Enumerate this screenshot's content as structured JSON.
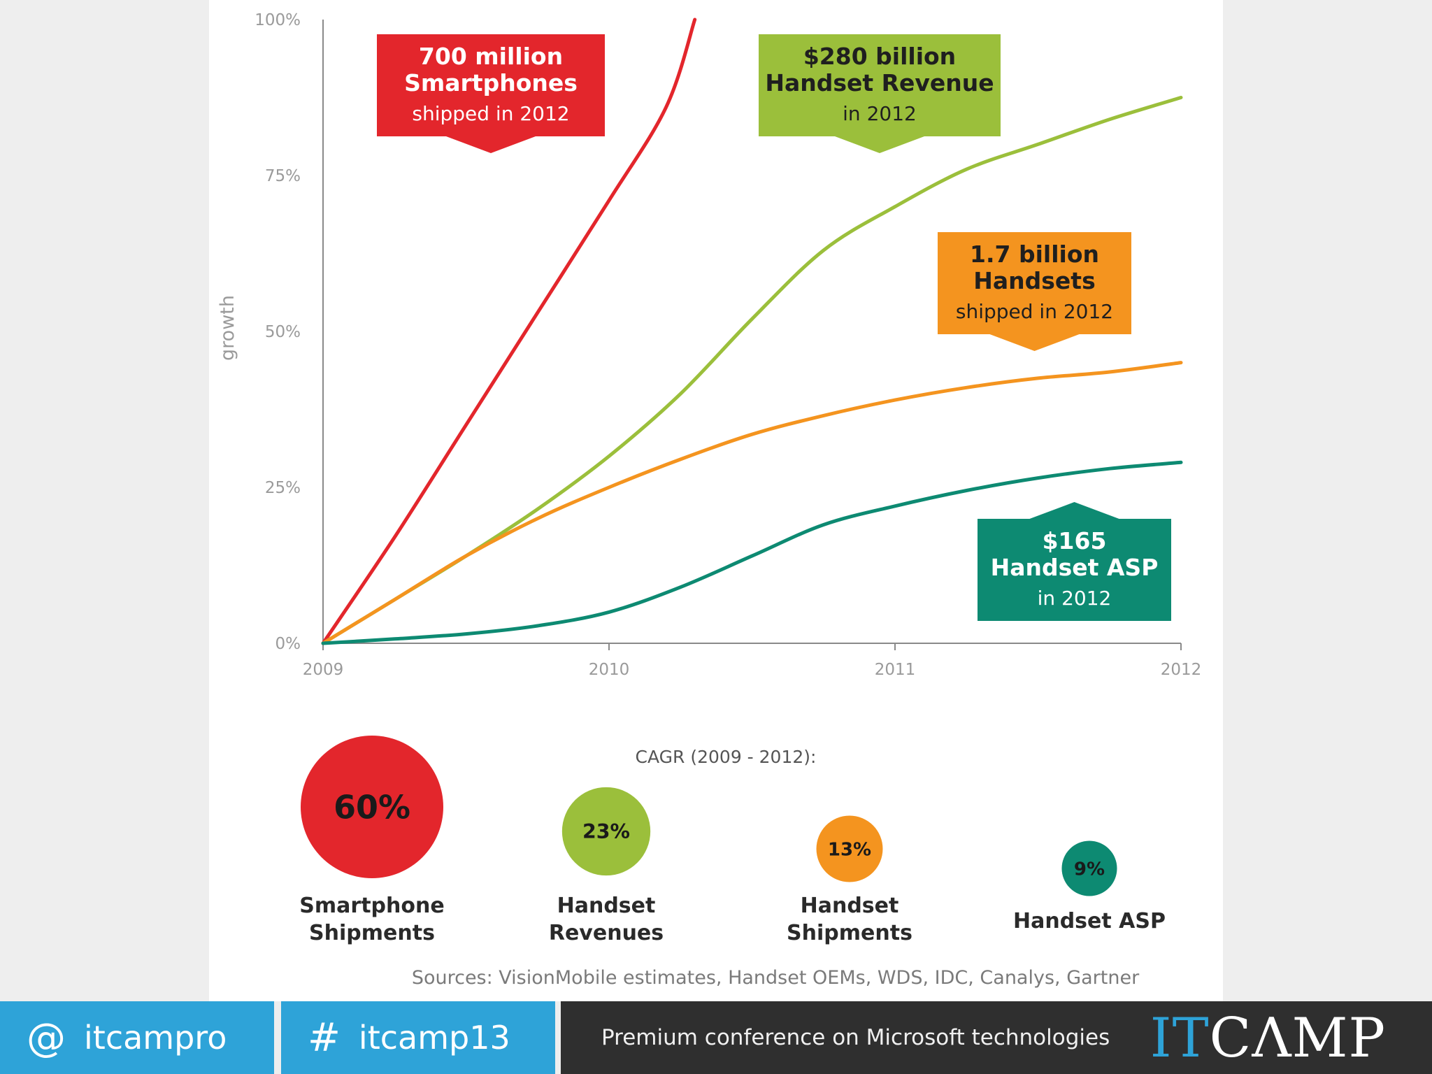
{
  "chart_data": {
    "type": "line",
    "title": "",
    "xlabel": "",
    "ylabel": "growth",
    "x": [
      2009,
      2010,
      2011,
      2012
    ],
    "x_tick_labels": [
      "2009",
      "2010",
      "2011",
      "2012"
    ],
    "ylim": [
      0,
      100
    ],
    "y_tick_labels": [
      "0%",
      "25%",
      "50%",
      "75%",
      "100%"
    ],
    "y_ticks": [
      0,
      25,
      50,
      75,
      100
    ],
    "grid": false,
    "series": [
      {
        "key": "smartphones",
        "color": "#e3262c",
        "points": [
          [
            2009,
            0
          ],
          [
            2009.25,
            17
          ],
          [
            2009.5,
            35
          ],
          [
            2009.75,
            53
          ],
          [
            2010,
            71
          ],
          [
            2010.2,
            86
          ],
          [
            2010.3,
            100
          ]
        ]
      },
      {
        "key": "revenue",
        "color": "#9bbf3b",
        "points": [
          [
            2009,
            0
          ],
          [
            2009.25,
            7
          ],
          [
            2009.5,
            14
          ],
          [
            2009.75,
            21.5
          ],
          [
            2010,
            30
          ],
          [
            2010.25,
            40
          ],
          [
            2010.5,
            52
          ],
          [
            2010.75,
            63
          ],
          [
            2011,
            70
          ],
          [
            2011.25,
            76
          ],
          [
            2011.5,
            80
          ],
          [
            2011.75,
            84
          ],
          [
            2012,
            87.5
          ]
        ]
      },
      {
        "key": "shipments",
        "color": "#f4941f",
        "points": [
          [
            2009,
            0
          ],
          [
            2009.25,
            7
          ],
          [
            2009.5,
            14
          ],
          [
            2009.75,
            20
          ],
          [
            2010,
            25
          ],
          [
            2010.25,
            29.5
          ],
          [
            2010.5,
            33.5
          ],
          [
            2010.75,
            36.5
          ],
          [
            2011,
            39
          ],
          [
            2011.25,
            41
          ],
          [
            2011.5,
            42.5
          ],
          [
            2011.75,
            43.5
          ],
          [
            2012,
            45
          ]
        ]
      },
      {
        "key": "asp",
        "color": "#0d8a72",
        "points": [
          [
            2009,
            0
          ],
          [
            2009.25,
            0.7
          ],
          [
            2009.5,
            1.5
          ],
          [
            2009.75,
            2.8
          ],
          [
            2010,
            5
          ],
          [
            2010.25,
            9
          ],
          [
            2010.5,
            14
          ],
          [
            2010.75,
            19
          ],
          [
            2011,
            22
          ],
          [
            2011.25,
            24.5
          ],
          [
            2011.5,
            26.5
          ],
          [
            2011.75,
            28
          ],
          [
            2012,
            29
          ]
        ]
      }
    ],
    "annotations": [
      {
        "key": "smartphones",
        "color": "#e3262c",
        "pointer": "down",
        "title_lines": [
          "700 million",
          "Smartphones"
        ],
        "sub": "shipped in 2012",
        "text_color": "#ffffff"
      },
      {
        "key": "revenue",
        "color": "#9bbf3b",
        "pointer": "down",
        "title_lines": [
          "$280 billion",
          "Handset Revenue"
        ],
        "sub": "in 2012",
        "text_color": "#1f1f1f"
      },
      {
        "key": "shipments",
        "color": "#f4941f",
        "pointer": "down",
        "title_lines": [
          "1.7 billion",
          "Handsets"
        ],
        "sub": "shipped in 2012",
        "text_color": "#1f1f1f"
      },
      {
        "key": "asp",
        "color": "#0d8a72",
        "pointer": "up",
        "title_lines": [
          "$165",
          "Handset ASP"
        ],
        "sub": "in 2012",
        "text_color": "#ffffff"
      }
    ],
    "cagr": {
      "title": "CAGR (2009 - 2012):",
      "items": [
        {
          "value": 60,
          "label": "60%",
          "name_lines": [
            "Smartphone",
            "Shipments"
          ],
          "color": "#e3262c"
        },
        {
          "value": 23,
          "label": "23%",
          "name_lines": [
            "Handset",
            "Revenues"
          ],
          "color": "#9bbf3b"
        },
        {
          "value": 13,
          "label": "13%",
          "name_lines": [
            "Handset",
            "Shipments"
          ],
          "color": "#f4941f"
        },
        {
          "value": 9,
          "label": "9%",
          "name_lines": [
            "Handset ASP"
          ],
          "color": "#0d8a72"
        }
      ]
    },
    "source": "Sources: VisionMobile estimates, Handset OEMs, WDS, IDC, Canalys, Gartner"
  },
  "footer": {
    "twitter_symbol": "@",
    "twitter_handle": "itcampro",
    "hashtag_symbol": "#",
    "hashtag": "itcamp13",
    "tagline": "Premium conference on Microsoft technologies",
    "logo_it": "IT",
    "logo_camp": "CΛMP",
    "accent_color": "#2ea3d8"
  }
}
